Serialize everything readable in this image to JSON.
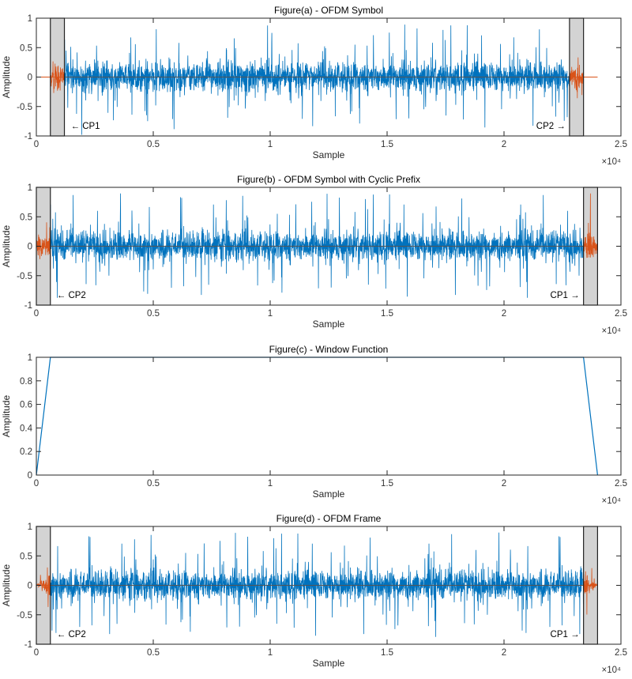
{
  "chart_data": [
    {
      "type": "line",
      "title": "Figure(a) - OFDM Symbol",
      "xlabel": "Sample",
      "ylabel": "Amplitude",
      "xlim": [
        0,
        25000
      ],
      "ylim": [
        -1,
        1
      ],
      "xticks": [
        "0",
        "0.5",
        "1",
        "1.5",
        "2",
        "2.5"
      ],
      "xtick_values": [
        0,
        5000,
        10000,
        15000,
        20000,
        25000
      ],
      "yticks": [
        "-1",
        "-0.5",
        "0",
        "0.5",
        "1"
      ],
      "ytick_values": [
        -1,
        -0.5,
        0,
        0.5,
        1
      ],
      "x_exponent": "×10⁴",
      "grid": false,
      "segments": [
        {
          "color": "#D95319",
          "start": 0,
          "end": 600,
          "kind": "zero"
        },
        {
          "color": "#D95319",
          "start": 600,
          "end": 1200,
          "kind": "cp"
        },
        {
          "color": "#0072BD",
          "start": 1200,
          "end": 22800,
          "kind": "signal"
        },
        {
          "color": "#D95319",
          "start": 22800,
          "end": 23400,
          "kind": "cp"
        },
        {
          "color": "#D95319",
          "start": 23400,
          "end": 24000,
          "kind": "zero"
        }
      ],
      "highlight_boxes": [
        {
          "start": 600,
          "end": 1200,
          "label": "← CP1",
          "label_side": "right"
        },
        {
          "start": 22800,
          "end": 23400,
          "label": "CP2 →",
          "label_side": "left"
        }
      ]
    },
    {
      "type": "line",
      "title": "Figure(b) - OFDM Symbol with Cyclic Prefix",
      "xlabel": "Sample",
      "ylabel": "Amplitude",
      "xlim": [
        0,
        25000
      ],
      "ylim": [
        -1,
        1
      ],
      "xticks": [
        "0",
        "0.5",
        "1",
        "1.5",
        "2",
        "2.5"
      ],
      "xtick_values": [
        0,
        5000,
        10000,
        15000,
        20000,
        25000
      ],
      "yticks": [
        "-1",
        "-0.5",
        "0",
        "0.5",
        "1"
      ],
      "ytick_values": [
        -1,
        -0.5,
        0,
        0.5,
        1
      ],
      "x_exponent": "×10⁴",
      "grid": false,
      "segments": [
        {
          "color": "#D95319",
          "start": 0,
          "end": 600,
          "kind": "cp"
        },
        {
          "color": "#0072BD",
          "start": 600,
          "end": 23400,
          "kind": "signal"
        },
        {
          "color": "#D95319",
          "start": 23400,
          "end": 24000,
          "kind": "cp"
        }
      ],
      "highlight_boxes": [
        {
          "start": 0,
          "end": 600,
          "label": "← CP2",
          "label_side": "right"
        },
        {
          "start": 23400,
          "end": 24000,
          "label": "CP1 →",
          "label_side": "left"
        }
      ]
    },
    {
      "type": "line",
      "title": "Figure(c) - Window Function",
      "xlabel": "Sample",
      "ylabel": "Amplitude",
      "xlim": [
        0,
        25000
      ],
      "ylim": [
        0,
        1
      ],
      "xticks": [
        "0",
        "0.5",
        "1",
        "1.5",
        "2",
        "2.5"
      ],
      "xtick_values": [
        0,
        5000,
        10000,
        15000,
        20000,
        25000
      ],
      "yticks": [
        "0",
        "0.2",
        "0.4",
        "0.6",
        "0.8",
        "1"
      ],
      "ytick_values": [
        0,
        0.2,
        0.4,
        0.6,
        0.8,
        1
      ],
      "x_exponent": "×10⁴",
      "grid": false,
      "series": [
        {
          "color": "#0072BD",
          "x": [
            0,
            600,
            23400,
            24000
          ],
          "y": [
            0,
            1,
            1,
            0
          ]
        }
      ]
    },
    {
      "type": "line",
      "title": "Figure(d) - OFDM Frame",
      "xlabel": "Sample",
      "ylabel": "Amplitude",
      "xlim": [
        0,
        25000
      ],
      "ylim": [
        -1,
        1
      ],
      "xticks": [
        "0",
        "0.5",
        "1",
        "1.5",
        "2",
        "2.5"
      ],
      "xtick_values": [
        0,
        5000,
        10000,
        15000,
        20000,
        25000
      ],
      "yticks": [
        "-1",
        "-0.5",
        "0",
        "0.5",
        "1"
      ],
      "ytick_values": [
        -1,
        -0.5,
        0,
        0.5,
        1
      ],
      "x_exponent": "×10⁴",
      "grid": false,
      "segments": [
        {
          "color": "#D95319",
          "start": 0,
          "end": 600,
          "kind": "cp-ramp-up"
        },
        {
          "color": "#0072BD",
          "start": 600,
          "end": 23400,
          "kind": "signal"
        },
        {
          "color": "#D95319",
          "start": 23400,
          "end": 24000,
          "kind": "cp-ramp-down"
        }
      ],
      "highlight_boxes": [
        {
          "start": 0,
          "end": 600,
          "label": "← CP2",
          "label_side": "right"
        },
        {
          "start": 23400,
          "end": 24000,
          "label": "CP1 →",
          "label_side": "left"
        }
      ]
    }
  ]
}
